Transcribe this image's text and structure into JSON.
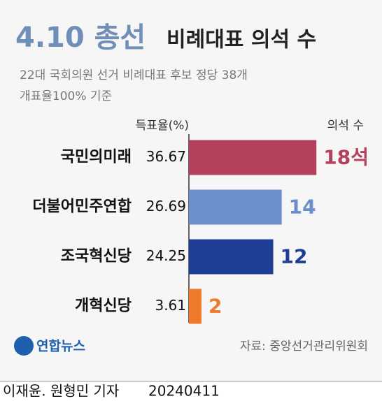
{
  "chart_data": {
    "type": "bar",
    "orientation": "horizontal",
    "title": "4.10 총선",
    "title_rest": "비례대표 의석 수",
    "subtitle": [
      "22대 국회의원 선거 비례대표 후보 정당 38개",
      "개표율100% 기준"
    ],
    "categories": [
      "국민의미래",
      "더불어민주연합",
      "조국혁신당",
      "개혁신당"
    ],
    "series": [
      {
        "name": "득표율(%)",
        "values": [
          36.67,
          26.69,
          24.25,
          3.61
        ],
        "colors": [
          "#b5405c",
          "#6a8fcb",
          "#1f3f97",
          "#f07a2c"
        ]
      }
    ],
    "seats": {
      "name": "의석 수",
      "values": [
        18,
        14,
        12,
        2
      ],
      "value_labels": [
        "18석",
        "14",
        "12",
        "2"
      ]
    },
    "source": "자료: 중앙선거관리위원회",
    "logo": "연합뉴스",
    "byline": "이재윤. 원형민 기자",
    "date": "20240411"
  }
}
